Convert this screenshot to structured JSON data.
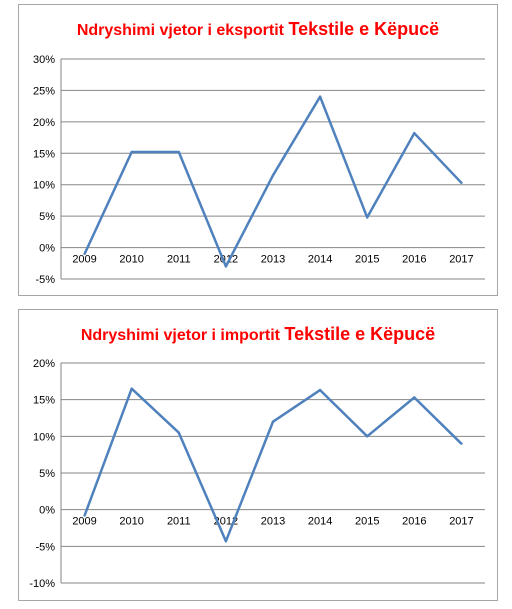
{
  "chart_data": [
    {
      "type": "line",
      "title_part1": "Ndryshimi vjetor i eksportit",
      "title_part2": "Tekstile e Këpucë",
      "categories": [
        "2009",
        "2010",
        "2011",
        "2012",
        "2013",
        "2014",
        "2015",
        "2016",
        "2017"
      ],
      "values": [
        -1.0,
        15.2,
        15.2,
        -3.0,
        11.5,
        24.0,
        4.8,
        18.2,
        10.3
      ],
      "ylim": [
        -5,
        30
      ],
      "yticks": [
        30,
        25,
        20,
        15,
        10,
        5,
        0,
        -5
      ],
      "ytick_labels": [
        "30%",
        "25%",
        "20%",
        "15%",
        "10%",
        "5%",
        "0%",
        "-5%"
      ],
      "grid": true,
      "legend": "none",
      "line_color": "#4f81bd",
      "grid_color": "#868686"
    },
    {
      "type": "line",
      "title_part1": "Ndryshimi vjetor i importit",
      "title_part2": "Tekstile e Këpucë",
      "categories": [
        "2009",
        "2010",
        "2011",
        "2012",
        "2013",
        "2014",
        "2015",
        "2016",
        "2017"
      ],
      "values": [
        -0.8,
        16.5,
        10.5,
        -4.3,
        12.0,
        16.3,
        10.0,
        15.3,
        9.0
      ],
      "ylim": [
        -10,
        20
      ],
      "yticks": [
        20,
        15,
        10,
        5,
        0,
        -5,
        -10
      ],
      "ytick_labels": [
        "20%",
        "15%",
        "10%",
        "5%",
        "0%",
        "-5%",
        "-10%"
      ],
      "grid": true,
      "legend": "none",
      "line_color": "#4f81bd",
      "grid_color": "#868686"
    }
  ]
}
